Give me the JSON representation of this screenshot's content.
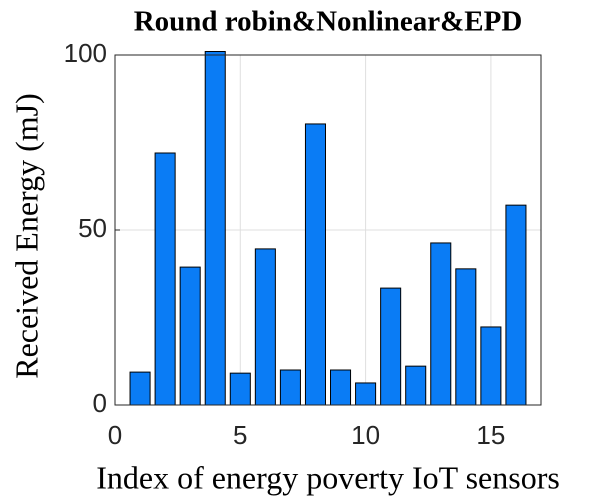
{
  "chart_data": {
    "type": "bar",
    "title": "Round robin&Nonlinear&EPD",
    "x_label": "Index of energy poverty IoT sensors",
    "y_label": "Received Energy (mJ)",
    "x": [
      1,
      2,
      3,
      4,
      5,
      6,
      7,
      8,
      9,
      10,
      11,
      12,
      13,
      14,
      15,
      16
    ],
    "values": [
      9.4,
      72,
      39.4,
      101,
      9.1,
      44.6,
      10,
      80.3,
      10,
      6.3,
      33.4,
      11.1,
      46.3,
      38.9,
      22.3,
      57.1
    ],
    "color": "#0a7cf5",
    "xlim": [
      0,
      17
    ],
    "xticks": [
      0,
      5,
      10,
      15
    ],
    "ylim": [
      0,
      100
    ],
    "yticks": [
      0,
      50,
      100
    ],
    "grid": true
  }
}
